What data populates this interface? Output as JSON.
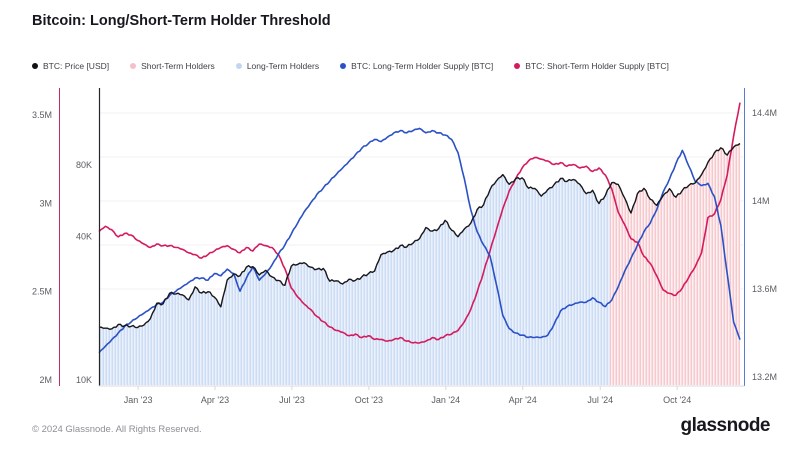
{
  "header": {
    "title": "Bitcoin: Long/Short-Term Holder Threshold"
  },
  "legend": [
    {
      "label": "BTC: Price [USD]",
      "color": "#111116"
    },
    {
      "label": "Short-Term Holders",
      "color": "#f5bfcc"
    },
    {
      "label": "Long-Term Holders",
      "color": "#c2d6f3"
    },
    {
      "label": "BTC: Long-Term Holder Supply [BTC]",
      "color": "#2b51c6"
    },
    {
      "label": "BTC: Short-Term Holder Supply [BTC]",
      "color": "#d41b5f"
    }
  ],
  "footer": {
    "copyright": "© 2024 Glassnode. All Rights Reserved.",
    "brand": "glassnode"
  },
  "chart_data": {
    "type": "line",
    "title": "Bitcoin: Long/Short-Term Holder Threshold",
    "grid": "horizontal-faint",
    "legend_position": "top",
    "colors": {
      "price_line": "#17171c",
      "lth_line": "#2b51c6",
      "sth_line": "#d41b5f",
      "left_axis_line": "#c62a62",
      "inner_axis_line": "#26262c",
      "right_axis_line": "#5b7ccc",
      "gridline": "#f0f0f3",
      "bottom_axis": "#d9d9de"
    },
    "axes": {
      "left_supply": {
        "title": "Short-Term Holder Supply",
        "range": [
          1.97,
          3.65
        ],
        "ticks": [
          {
            "label": "3.5M",
            "value": 3.5
          },
          {
            "label": "3M",
            "value": 3.0
          },
          {
            "label": "2.5M",
            "value": 2.5
          },
          {
            "label": "2M",
            "value": 2.0
          }
        ]
      },
      "left_price_log": {
        "title": "BTC Price USD",
        "range": [
          9.4,
          168
        ],
        "ticks": [
          {
            "label": "80K",
            "value": 80
          },
          {
            "label": "40K",
            "value": 40
          },
          {
            "label": "10K",
            "value": 10
          }
        ]
      },
      "right_supply": {
        "title": "Long-Term Holder Supply",
        "range": [
          13.14,
          14.52
        ],
        "ticks": [
          {
            "label": "14.4M",
            "value": 14.4
          },
          {
            "label": "14M",
            "value": 14.0
          },
          {
            "label": "13.6M",
            "value": 13.6
          },
          {
            "label": "13.2M",
            "value": 13.2
          }
        ]
      },
      "x": {
        "span": "Nov 2022 - Dec 2024",
        "ticks": [
          {
            "label": "Jan '23",
            "pct": 6.1
          },
          {
            "label": "Apr '23",
            "pct": 18.1
          },
          {
            "label": "Jul '23",
            "pct": 30.1
          },
          {
            "label": "Oct '23",
            "pct": 42.1
          },
          {
            "label": "Jan '24",
            "pct": 54.1
          },
          {
            "label": "Apr '24",
            "pct": 66.1
          },
          {
            "label": "Jul '24",
            "pct": 78.2
          },
          {
            "label": "Oct '24",
            "pct": 90.2
          }
        ]
      }
    },
    "regions": [
      {
        "name": "Long-Term Holders",
        "from_pct": 0,
        "to_pct": 79.7,
        "fill": "#eaf1fb",
        "stripe": "#c9daf3"
      },
      {
        "name": "Short-Term Holders",
        "from_pct": 79.7,
        "to_pct": 100,
        "fill": "#fdf0f1",
        "stripe": "#f6c5cb"
      }
    ],
    "series": [
      {
        "name": "BTC: Price [USD]",
        "axis": "left_price_log",
        "unit": "K USD",
        "color": "#17171c",
        "values": [
          16.6,
          16.5,
          16.4,
          17.1,
          16.9,
          16.8,
          16.6,
          17.0,
          18.1,
          21.0,
          20.9,
          23.1,
          23.0,
          22.8,
          21.7,
          24.6,
          23.2,
          23.5,
          22.3,
          20.3,
          26.3,
          27.9,
          27.4,
          29.8,
          29.9,
          27.6,
          28.9,
          27.1,
          26.2,
          25.0,
          30.1,
          30.6,
          31.1,
          29.8,
          29.2,
          29.4,
          26.0,
          26.1,
          25.3,
          26.5,
          26.2,
          27.1,
          27.9,
          28.7,
          33.6,
          34.5,
          35.1,
          36.7,
          36.2,
          37.6,
          39.2,
          43.7,
          42.2,
          43.3,
          46.8,
          42.6,
          40.0,
          43.1,
          45.6,
          52.0,
          54.5,
          63.0,
          68.6,
          72.9,
          66.4,
          70.1,
          70.7,
          63.9,
          63.7,
          59.2,
          63.0,
          66.2,
          70.2,
          68.2,
          69.5,
          66.4,
          60.6,
          62.6,
          55.1,
          59.6,
          67.4,
          66.3,
          58.2,
          50.3,
          60.6,
          63.8,
          57.4,
          54.1,
          59.5,
          63.6,
          58.6,
          62.5,
          65.6,
          67.2,
          72.8,
          82.0,
          90.0,
          94.5,
          88.0,
          95.0,
          98.5
        ]
      },
      {
        "name": "BTC: Long-Term Holder Supply [BTC]",
        "axis": "right_supply",
        "unit": "M BTC",
        "color": "#2b51c6",
        "values": [
          13.31,
          13.34,
          13.37,
          13.4,
          13.43,
          13.45,
          13.47,
          13.49,
          13.51,
          13.53,
          13.54,
          13.57,
          13.59,
          13.61,
          13.63,
          13.65,
          13.65,
          13.64,
          13.67,
          13.66,
          13.69,
          13.67,
          13.59,
          13.65,
          13.7,
          13.64,
          13.67,
          13.71,
          13.76,
          13.8,
          13.85,
          13.9,
          13.95,
          13.99,
          14.03,
          14.06,
          14.09,
          14.12,
          14.15,
          14.18,
          14.21,
          14.24,
          14.26,
          14.28,
          14.27,
          14.29,
          14.31,
          14.32,
          14.31,
          14.32,
          14.33,
          14.31,
          14.32,
          14.31,
          14.3,
          14.28,
          14.22,
          14.1,
          13.96,
          13.86,
          13.8,
          13.75,
          13.62,
          13.48,
          13.42,
          13.4,
          13.39,
          13.38,
          13.38,
          13.38,
          13.39,
          13.44,
          13.5,
          13.52,
          13.53,
          13.54,
          13.54,
          13.56,
          13.54,
          13.52,
          13.55,
          13.61,
          13.68,
          13.74,
          13.8,
          13.86,
          13.9,
          13.96,
          14.04,
          14.1,
          14.17,
          14.23,
          14.16,
          14.09,
          14.07,
          14.08,
          14.02,
          13.89,
          13.67,
          13.45,
          13.37
        ]
      },
      {
        "name": "BTC: Short-Term Holder Supply [BTC]",
        "axis": "left_supply",
        "unit": "M BTC",
        "color": "#d41b5f",
        "values": [
          2.84,
          2.87,
          2.85,
          2.81,
          2.83,
          2.82,
          2.79,
          2.77,
          2.75,
          2.77,
          2.76,
          2.76,
          2.75,
          2.74,
          2.72,
          2.71,
          2.69,
          2.71,
          2.73,
          2.75,
          2.76,
          2.74,
          2.72,
          2.75,
          2.73,
          2.77,
          2.76,
          2.75,
          2.71,
          2.63,
          2.52,
          2.47,
          2.43,
          2.4,
          2.36,
          2.33,
          2.3,
          2.28,
          2.27,
          2.25,
          2.26,
          2.24,
          2.25,
          2.23,
          2.23,
          2.22,
          2.23,
          2.24,
          2.22,
          2.21,
          2.21,
          2.22,
          2.24,
          2.23,
          2.25,
          2.26,
          2.28,
          2.33,
          2.4,
          2.5,
          2.61,
          2.73,
          2.85,
          2.97,
          3.07,
          3.14,
          3.2,
          3.24,
          3.26,
          3.25,
          3.24,
          3.22,
          3.23,
          3.21,
          3.22,
          3.2,
          3.21,
          3.18,
          3.2,
          3.16,
          3.08,
          2.95,
          2.88,
          2.8,
          2.78,
          2.7,
          2.66,
          2.59,
          2.51,
          2.49,
          2.48,
          2.52,
          2.58,
          2.64,
          2.72,
          2.92,
          2.94,
          3.02,
          3.16,
          3.38,
          3.57
        ]
      }
    ]
  }
}
